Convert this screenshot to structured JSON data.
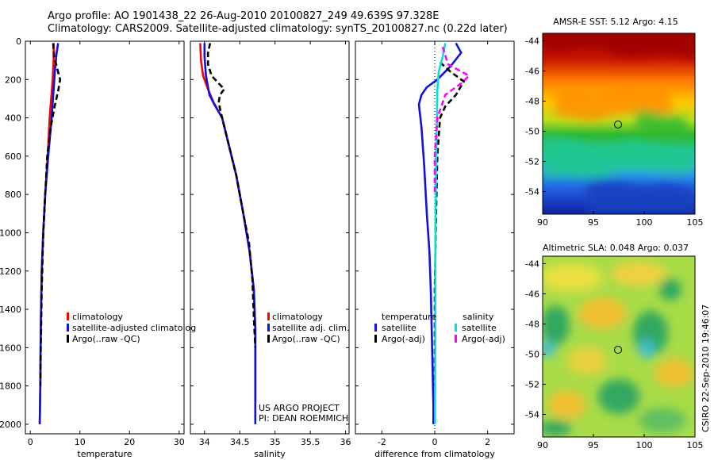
{
  "title": {
    "line1": "Argo profile: AO 1901438_22 26-Aug-2010 20100827_249 49.639S 97.328E",
    "line2": "Climatology: CARS2009. Satellite-adjusted climatology: synTS_20100827.nc (0.22d later)"
  },
  "side_label": "CSIRO 22-Sep-2010 19:46:07",
  "colors": {
    "climatology": "#ff0000",
    "satellite": "#1010e0",
    "argo": "#000000",
    "salinity_satellite": "#00e0e0",
    "salinity_argo": "#ff00ff"
  },
  "chart_data": [
    {
      "type": "line",
      "id": "temperature",
      "xlabel": "temperature",
      "ylabel": "",
      "xlim": [
        -1,
        31
      ],
      "ylim": [
        2050,
        0
      ],
      "xticks": [
        "0",
        "10",
        "20",
        "30"
      ],
      "xtick_values": [
        0,
        10,
        20,
        30
      ],
      "yticks": [
        "0",
        "200",
        "400",
        "600",
        "800",
        "1000",
        "1200",
        "1400",
        "1600",
        "1800",
        "2000"
      ],
      "ytick_values": [
        0,
        200,
        400,
        600,
        800,
        1000,
        1200,
        1400,
        1600,
        1800,
        2000
      ],
      "legend": [
        "climatology",
        "satellite-adjusted climatolog",
        "Argo(..raw -QC)"
      ],
      "legend_position": "lower-right",
      "series": [
        {
          "name": "climatology",
          "color": "#ff0000",
          "style": "solid",
          "x": [
            4.7,
            4.7,
            4.5,
            4.2,
            3.9,
            3.5,
            3.0,
            2.6,
            2.3,
            2.1,
            2.0,
            1.9
          ],
          "y": [
            10,
            100,
            200,
            300,
            400,
            600,
            800,
            1000,
            1200,
            1500,
            1800,
            2000
          ]
        },
        {
          "name": "satellite-adjusted climatolog",
          "color": "#1010e0",
          "style": "solid",
          "x": [
            5.6,
            5.3,
            5.0,
            4.7,
            4.3,
            3.6,
            3.0,
            2.6,
            2.3,
            2.1,
            2.0,
            1.9
          ],
          "y": [
            10,
            60,
            140,
            250,
            400,
            600,
            800,
            1000,
            1200,
            1500,
            1800,
            2000
          ]
        },
        {
          "name": "Argo(..raw -QC)",
          "color": "#000000",
          "style": "dashed",
          "x": [
            4.6,
            4.8,
            5.5,
            6.0,
            5.6,
            4.9,
            4.1,
            3.4,
            3.0,
            2.6,
            2.3,
            2.1,
            2.0
          ],
          "y": [
            10,
            80,
            150,
            200,
            260,
            340,
            450,
            600,
            800,
            1000,
            1300,
            1600,
            1800
          ]
        }
      ]
    },
    {
      "type": "line",
      "id": "salinity",
      "xlabel": "salinity",
      "xlim": [
        33.8,
        36.05
      ],
      "ylim": [
        2050,
        0
      ],
      "xticks": [
        "34",
        "34.5",
        "35",
        "35.5",
        "36"
      ],
      "xtick_values": [
        34,
        34.5,
        35,
        35.5,
        36
      ],
      "legend": [
        "climatology",
        "satellite adj. clim.",
        "Argo(..raw -QC)"
      ],
      "legend_position": "lower-right",
      "annotations": [
        "US ARGO PROJECT",
        "PI: DEAN ROEMMICH"
      ],
      "series": [
        {
          "name": "climatology",
          "color": "#ff0000",
          "style": "solid",
          "x": [
            33.94,
            33.95,
            33.98,
            34.05,
            34.13,
            34.25,
            34.35,
            34.45,
            34.55,
            34.64,
            34.7,
            34.72,
            34.72,
            34.72
          ],
          "y": [
            10,
            100,
            180,
            250,
            320,
            400,
            550,
            700,
            900,
            1100,
            1300,
            1500,
            1700,
            1880
          ]
        },
        {
          "name": "satellite adj. clim.",
          "color": "#1010e0",
          "style": "solid",
          "x": [
            34.0,
            34.0,
            34.02,
            34.07,
            34.14,
            34.25,
            34.35,
            34.45,
            34.55,
            34.64,
            34.7,
            34.72,
            34.72,
            34.72,
            34.72
          ],
          "y": [
            10,
            80,
            180,
            280,
            330,
            400,
            550,
            700,
            900,
            1100,
            1300,
            1500,
            1700,
            1900,
            2000
          ]
        },
        {
          "name": "Argo(..raw -QC)",
          "color": "#000000",
          "style": "dashed",
          "x": [
            34.08,
            34.05,
            34.05,
            34.1,
            34.2,
            34.28,
            34.22,
            34.2,
            34.25,
            34.35,
            34.45,
            34.55,
            34.63,
            34.68,
            34.7,
            34.72
          ],
          "y": [
            10,
            60,
            120,
            180,
            220,
            250,
            280,
            320,
            400,
            550,
            700,
            900,
            1050,
            1250,
            1450,
            1600
          ]
        }
      ]
    },
    {
      "type": "line",
      "id": "difference",
      "xlabel": "difference from climatology",
      "xlim": [
        -3,
        3
      ],
      "ylim": [
        2050,
        0
      ],
      "xticks": [
        "-2",
        "0",
        "2"
      ],
      "xtick_values": [
        -2,
        0,
        2
      ],
      "legend_headers": [
        "temperature",
        "salinity"
      ],
      "legend": [
        "satellite",
        "Argo(-adj)",
        "satellite",
        "Argo(-adj)"
      ],
      "legend_position": "lower-center",
      "series": [
        {
          "name": "satellite",
          "group": "temperature",
          "color": "#1010e0",
          "style": "solid",
          "x": [
            0.8,
            1.0,
            0.6,
            0.1,
            -0.3,
            -0.5,
            -0.6,
            -0.5,
            -0.4,
            -0.3,
            -0.2,
            -0.15,
            -0.1,
            -0.05,
            -0.05
          ],
          "y": [
            10,
            60,
            130,
            200,
            240,
            280,
            330,
            450,
            650,
            900,
            1100,
            1300,
            1600,
            1900,
            2000
          ]
        },
        {
          "name": "Argo(-adj)",
          "group": "temperature",
          "color": "#000000",
          "style": "dashed",
          "x": [
            0.2,
            0.6,
            1.1,
            0.8,
            0.4,
            0.2,
            0.1,
            0.05,
            0.0,
            0.0
          ],
          "y": [
            110,
            160,
            210,
            280,
            340,
            400,
            600,
            900,
            1300,
            1800
          ]
        },
        {
          "name": "satellite",
          "group": "salinity",
          "color": "#00e0e0",
          "style": "solid",
          "x": [
            0.4,
            0.3,
            0.15,
            0.1,
            0.08,
            0.05,
            0.03,
            0.02,
            0.02,
            0.01
          ],
          "y": [
            10,
            80,
            160,
            250,
            400,
            600,
            900,
            1200,
            1500,
            2000
          ]
        },
        {
          "name": "Argo(-adj)",
          "group": "salinity",
          "color": "#ff00ff",
          "style": "dashed",
          "x": [
            0.3,
            0.5,
            1.3,
            1.0,
            0.4,
            0.1,
            0.0,
            0.0
          ],
          "y": [
            30,
            120,
            180,
            220,
            280,
            400,
            600,
            800
          ]
        }
      ]
    },
    {
      "type": "heatmap",
      "id": "sst-map",
      "title": "AMSR-E SST: 5.12 Argo: 4.15",
      "xlim": [
        90,
        105
      ],
      "ylim": [
        -55.5,
        -43.5
      ],
      "xticks": [
        "90",
        "95",
        "100",
        "105"
      ],
      "xtick_values": [
        90,
        95,
        100,
        105
      ],
      "yticks": [
        "-44",
        "-46",
        "-48",
        "-50",
        "-52",
        "-54"
      ],
      "ytick_values": [
        -44,
        -46,
        -48,
        -50,
        -52,
        -54
      ],
      "marker": {
        "lon": 97.33,
        "lat": -49.64
      },
      "colormap": "jet"
    },
    {
      "type": "heatmap",
      "id": "sla-map",
      "title": "Altimetric SLA: 0.048 Argo: 0.037",
      "xlim": [
        90,
        105
      ],
      "ylim": [
        -55.5,
        -43.5
      ],
      "xticks": [
        "90",
        "95",
        "100",
        "105"
      ],
      "xtick_values": [
        90,
        95,
        100,
        105
      ],
      "yticks": [
        "-44",
        "-46",
        "-48",
        "-50",
        "-52",
        "-54"
      ],
      "ytick_values": [
        -44,
        -46,
        -48,
        -50,
        -52,
        -54
      ],
      "marker": {
        "lon": 97.33,
        "lat": -49.64
      },
      "colormap": "jet"
    }
  ]
}
